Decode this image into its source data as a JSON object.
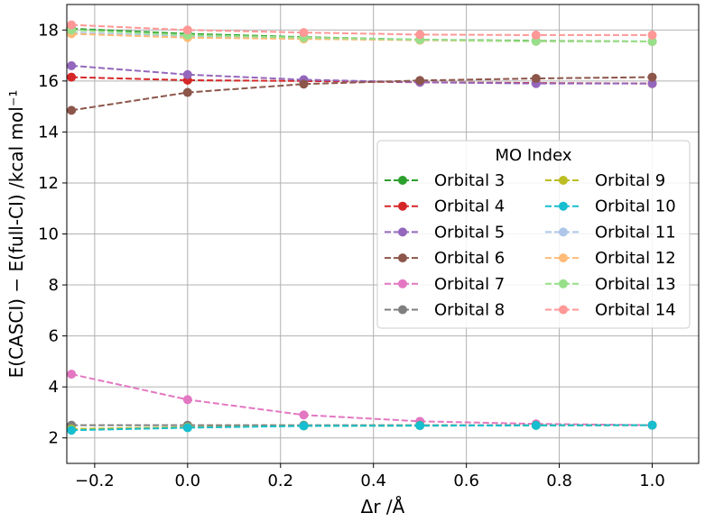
{
  "chart_data": {
    "type": "line",
    "title": "",
    "xlabel": "Δr /Å",
    "ylabel": "E(CASCI) − E(full-CI) /kcal mol⁻¹",
    "x": [
      -0.25,
      0.0,
      0.25,
      0.5,
      0.75,
      1.0
    ],
    "xlim": [
      -0.26,
      1.1
    ],
    "ylim": [
      1.0,
      19.0
    ],
    "xticks": [
      -0.2,
      0.0,
      0.2,
      0.4,
      0.6,
      0.8,
      1.0
    ],
    "xtick_labels": [
      "−0.2",
      "0.0",
      "0.2",
      "0.4",
      "0.6",
      "0.8",
      "1.0"
    ],
    "yticks": [
      2,
      4,
      6,
      8,
      10,
      12,
      14,
      16,
      18
    ],
    "ytick_labels": [
      "2",
      "4",
      "6",
      "8",
      "10",
      "12",
      "14",
      "16",
      "18"
    ],
    "grid": true,
    "legend": {
      "title": "MO Index",
      "position": "center-right",
      "columns": 2
    },
    "series": [
      {
        "name": "Orbital 3",
        "color": "#2ca02c",
        "values": [
          18.05,
          17.85,
          17.72,
          17.62,
          17.58,
          17.55
        ]
      },
      {
        "name": "Orbital 4",
        "color": "#d62728",
        "values": [
          16.15,
          16.03,
          16.0,
          15.95,
          15.92,
          15.9
        ]
      },
      {
        "name": "Orbital 5",
        "color": "#9467bd",
        "values": [
          16.6,
          16.25,
          16.05,
          15.95,
          15.9,
          15.9
        ]
      },
      {
        "name": "Orbital 6",
        "color": "#8c564b",
        "values": [
          14.85,
          15.55,
          15.88,
          16.02,
          16.1,
          16.15
        ]
      },
      {
        "name": "Orbital 7",
        "color": "#e377c2",
        "values": [
          4.5,
          3.5,
          2.9,
          2.65,
          2.55,
          2.5
        ]
      },
      {
        "name": "Orbital 8",
        "color": "#7f7f7f",
        "values": [
          2.5,
          2.5,
          2.5,
          2.5,
          2.5,
          2.5
        ]
      },
      {
        "name": "Orbital 9",
        "color": "#bcbd22",
        "values": [
          2.35,
          2.42,
          2.47,
          2.48,
          2.49,
          2.5
        ]
      },
      {
        "name": "Orbital 10",
        "color": "#17becf",
        "values": [
          2.3,
          2.4,
          2.47,
          2.48,
          2.49,
          2.5
        ]
      },
      {
        "name": "Orbital 11",
        "color": "#aec7e8",
        "values": [
          17.9,
          17.75,
          17.67,
          17.6,
          17.56,
          17.55
        ]
      },
      {
        "name": "Orbital 12",
        "color": "#ffbb78",
        "values": [
          17.85,
          17.7,
          17.65,
          17.6,
          17.56,
          17.55
        ]
      },
      {
        "name": "Orbital 13",
        "color": "#98df8a",
        "values": [
          18.0,
          17.8,
          17.7,
          17.62,
          17.56,
          17.55
        ]
      },
      {
        "name": "Orbital 14",
        "color": "#ff9896",
        "values": [
          18.2,
          18.0,
          17.9,
          17.82,
          17.8,
          17.8
        ]
      }
    ]
  }
}
